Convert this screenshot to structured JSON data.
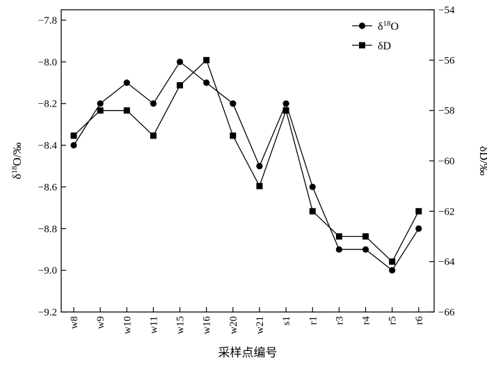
{
  "chart_data": {
    "type": "line",
    "categories": [
      "w8",
      "w9",
      "w10",
      "w11",
      "w15",
      "w16",
      "w20",
      "w21",
      "s1",
      "r1",
      "r3",
      "r4",
      "r5",
      "r6"
    ],
    "xlabel": "采样点编号",
    "left_axis": {
      "label_main": "δ",
      "label_sup": "18",
      "label_rest": "O/‰",
      "ylim": [
        -9.2,
        -7.75
      ],
      "ticks": [
        -7.8,
        -8.0,
        -8.2,
        -8.4,
        -8.6,
        -8.8,
        -9.0,
        -9.2
      ],
      "tick_labels": [
        "−7.8",
        "−8.0",
        "−8.2",
        "−8.4",
        "−8.6",
        "−8.8",
        "−9.0",
        "−9.2"
      ]
    },
    "right_axis": {
      "label": "δD/‰",
      "ylim": [
        -66,
        -54
      ],
      "ticks": [
        -54,
        -56,
        -58,
        -60,
        -62,
        -64,
        -66
      ],
      "tick_labels": [
        "−54",
        "−56",
        "−58",
        "−60",
        "−62",
        "−64",
        "−66"
      ]
    },
    "series": [
      {
        "name_main": "δ",
        "name_sup": "18",
        "name_rest": "O",
        "axis": "left",
        "marker": "circle",
        "values": [
          -8.4,
          -8.2,
          -8.1,
          -8.2,
          -8.0,
          -8.1,
          -8.2,
          -8.5,
          -8.2,
          -8.6,
          -8.9,
          -8.9,
          -9.0,
          -8.8
        ]
      },
      {
        "name_main": "δD",
        "axis": "right",
        "marker": "square",
        "values": [
          -59,
          -58,
          -58,
          -59,
          -57,
          -56,
          -59,
          -61,
          -58,
          -62,
          -63,
          -63,
          -64,
          -62
        ]
      }
    ],
    "legend_position": "top-right",
    "grid": false,
    "colors": {
      "line": "#000000",
      "background": "#ffffff"
    }
  }
}
